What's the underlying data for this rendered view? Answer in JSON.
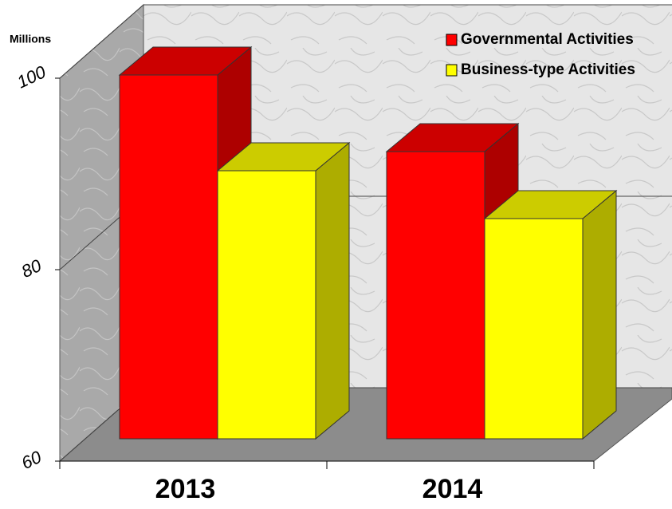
{
  "chart_data": {
    "type": "bar3d",
    "y_axis_label": "Millions",
    "categories": [
      "2013",
      "2014"
    ],
    "series": [
      {
        "name": "Governmental Activities",
        "color": "#ff0000",
        "values": [
          98,
          90
        ]
      },
      {
        "name": "Business-type Activities",
        "color": "#ffff00",
        "values": [
          88,
          83
        ]
      }
    ],
    "ylim": [
      60,
      100
    ],
    "yticks": [
      60,
      80,
      100
    ],
    "grid": true,
    "legend": "top-right"
  }
}
